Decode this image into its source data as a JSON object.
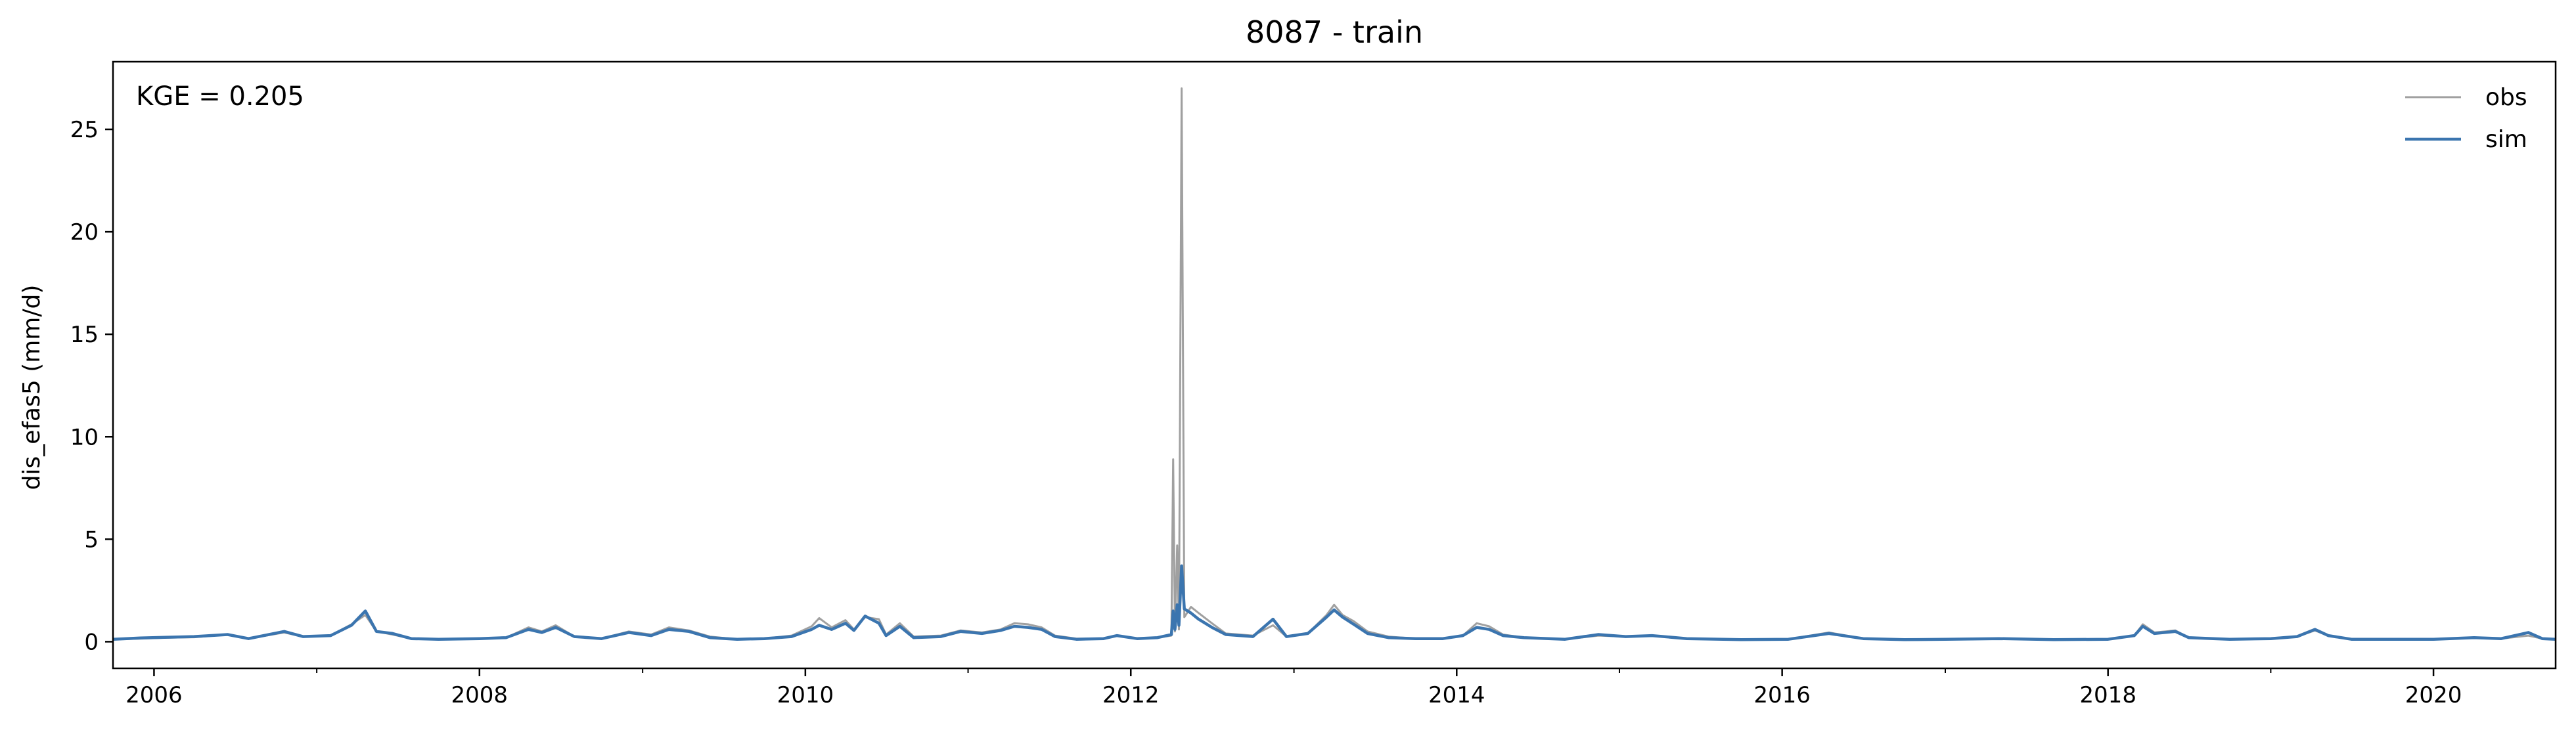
{
  "chart_data": {
    "type": "line",
    "title": "8087 - train",
    "xlabel": "",
    "ylabel": "dis_efas5 (mm/d)",
    "x_range": [
      "2005-10-01",
      "2020-10-01"
    ],
    "ylim": [
      -1.3,
      28.3
    ],
    "x_ticks": [
      "2006",
      "2008",
      "2010",
      "2012",
      "2014",
      "2016",
      "2018",
      "2020"
    ],
    "y_ticks": [
      0,
      5,
      10,
      15,
      20,
      25
    ],
    "grid": false,
    "legend": "top-right",
    "annotation": "KGE = 0.205",
    "series": [
      {
        "name": "obs",
        "color": "#a0a0a0",
        "points": [
          [
            "2005-10-01",
            0.12
          ],
          [
            "2005-12-01",
            0.15
          ],
          [
            "2006-02-01",
            0.2
          ],
          [
            "2006-04-01",
            0.22
          ],
          [
            "2006-06-15",
            0.35
          ],
          [
            "2006-08-01",
            0.15
          ],
          [
            "2006-10-20",
            0.45
          ],
          [
            "2006-12-01",
            0.25
          ],
          [
            "2007-02-01",
            0.3
          ],
          [
            "2007-03-20",
            0.85
          ],
          [
            "2007-04-20",
            1.3
          ],
          [
            "2007-05-15",
            0.5
          ],
          [
            "2007-06-20",
            0.35
          ],
          [
            "2007-08-01",
            0.15
          ],
          [
            "2007-10-01",
            0.12
          ],
          [
            "2008-01-01",
            0.15
          ],
          [
            "2008-03-01",
            0.2
          ],
          [
            "2008-04-20",
            0.7
          ],
          [
            "2008-05-20",
            0.5
          ],
          [
            "2008-06-20",
            0.8
          ],
          [
            "2008-08-01",
            0.25
          ],
          [
            "2008-10-01",
            0.15
          ],
          [
            "2008-12-01",
            0.5
          ],
          [
            "2009-01-20",
            0.35
          ],
          [
            "2009-03-01",
            0.7
          ],
          [
            "2009-04-15",
            0.55
          ],
          [
            "2009-06-01",
            0.25
          ],
          [
            "2009-08-01",
            0.12
          ],
          [
            "2009-10-01",
            0.15
          ],
          [
            "2009-12-01",
            0.3
          ],
          [
            "2010-01-15",
            0.75
          ],
          [
            "2010-02-01",
            1.15
          ],
          [
            "2010-03-01",
            0.7
          ],
          [
            "2010-04-01",
            1.05
          ],
          [
            "2010-04-20",
            0.6
          ],
          [
            "2010-05-15",
            1.2
          ],
          [
            "2010-06-15",
            1.1
          ],
          [
            "2010-07-01",
            0.35
          ],
          [
            "2010-08-01",
            0.9
          ],
          [
            "2010-09-01",
            0.25
          ],
          [
            "2010-11-01",
            0.3
          ],
          [
            "2010-12-15",
            0.55
          ],
          [
            "2011-02-01",
            0.45
          ],
          [
            "2011-03-15",
            0.6
          ],
          [
            "2011-04-15",
            0.9
          ],
          [
            "2011-05-15",
            0.85
          ],
          [
            "2011-06-15",
            0.7
          ],
          [
            "2011-07-15",
            0.3
          ],
          [
            "2011-09-01",
            0.15
          ],
          [
            "2011-11-01",
            0.15
          ],
          [
            "2011-12-01",
            0.3
          ],
          [
            "2012-01-15",
            0.15
          ],
          [
            "2012-03-01",
            0.2
          ],
          [
            "2012-04-01",
            0.3
          ],
          [
            "2012-04-05",
            8.9
          ],
          [
            "2012-04-09",
            0.5
          ],
          [
            "2012-04-14",
            4.7
          ],
          [
            "2012-04-18",
            0.6
          ],
          [
            "2012-04-24",
            27.0
          ],
          [
            "2012-04-30",
            1.2
          ],
          [
            "2012-05-15",
            1.7
          ],
          [
            "2012-06-01",
            1.4
          ],
          [
            "2012-07-01",
            0.9
          ],
          [
            "2012-08-01",
            0.4
          ],
          [
            "2012-10-01",
            0.3
          ],
          [
            "2012-11-15",
            0.8
          ],
          [
            "2012-12-15",
            0.25
          ],
          [
            "2013-02-01",
            0.4
          ],
          [
            "2013-03-15",
            1.3
          ],
          [
            "2013-04-01",
            1.8
          ],
          [
            "2013-04-20",
            1.3
          ],
          [
            "2013-05-15",
            1.0
          ],
          [
            "2013-06-15",
            0.5
          ],
          [
            "2013-08-01",
            0.25
          ],
          [
            "2013-10-01",
            0.15
          ],
          [
            "2013-12-01",
            0.15
          ],
          [
            "2014-01-15",
            0.3
          ],
          [
            "2014-02-15",
            0.9
          ],
          [
            "2014-03-15",
            0.75
          ],
          [
            "2014-04-15",
            0.35
          ],
          [
            "2014-06-01",
            0.2
          ],
          [
            "2014-09-01",
            0.12
          ],
          [
            "2014-11-15",
            0.3
          ],
          [
            "2015-01-15",
            0.25
          ],
          [
            "2015-03-15",
            0.3
          ],
          [
            "2015-06-01",
            0.15
          ],
          [
            "2015-10-01",
            0.1
          ],
          [
            "2016-01-15",
            0.12
          ],
          [
            "2016-04-15",
            0.45
          ],
          [
            "2016-07-01",
            0.15
          ],
          [
            "2016-10-01",
            0.1
          ],
          [
            "2017-01-01",
            0.12
          ],
          [
            "2017-05-01",
            0.15
          ],
          [
            "2017-09-01",
            0.1
          ],
          [
            "2018-01-01",
            0.12
          ],
          [
            "2018-03-01",
            0.3
          ],
          [
            "2018-03-20",
            0.85
          ],
          [
            "2018-04-15",
            0.45
          ],
          [
            "2018-06-01",
            0.55
          ],
          [
            "2018-07-01",
            0.2
          ],
          [
            "2018-10-01",
            0.12
          ],
          [
            "2019-01-01",
            0.15
          ],
          [
            "2019-03-01",
            0.25
          ],
          [
            "2019-04-10",
            0.55
          ],
          [
            "2019-05-10",
            0.3
          ],
          [
            "2019-07-01",
            0.12
          ],
          [
            "2019-10-01",
            0.12
          ],
          [
            "2020-01-01",
            0.12
          ],
          [
            "2020-04-01",
            0.2
          ],
          [
            "2020-06-01",
            0.15
          ],
          [
            "2020-08-01",
            0.3
          ],
          [
            "2020-09-01",
            0.15
          ],
          [
            "2020-10-01",
            0.12
          ]
        ]
      },
      {
        "name": "sim",
        "color": "#3b75af",
        "points": [
          [
            "2005-10-01",
            0.12
          ],
          [
            "2005-12-01",
            0.18
          ],
          [
            "2006-02-01",
            0.22
          ],
          [
            "2006-04-01",
            0.25
          ],
          [
            "2006-06-15",
            0.35
          ],
          [
            "2006-08-01",
            0.15
          ],
          [
            "2006-10-20",
            0.5
          ],
          [
            "2006-12-01",
            0.25
          ],
          [
            "2007-02-01",
            0.3
          ],
          [
            "2007-03-20",
            0.8
          ],
          [
            "2007-04-20",
            1.5
          ],
          [
            "2007-05-15",
            0.5
          ],
          [
            "2007-06-20",
            0.4
          ],
          [
            "2007-08-01",
            0.15
          ],
          [
            "2007-10-01",
            0.12
          ],
          [
            "2008-01-01",
            0.15
          ],
          [
            "2008-03-01",
            0.2
          ],
          [
            "2008-04-20",
            0.6
          ],
          [
            "2008-05-20",
            0.45
          ],
          [
            "2008-06-20",
            0.7
          ],
          [
            "2008-08-01",
            0.25
          ],
          [
            "2008-10-01",
            0.15
          ],
          [
            "2008-12-01",
            0.45
          ],
          [
            "2009-01-20",
            0.3
          ],
          [
            "2009-03-01",
            0.6
          ],
          [
            "2009-04-15",
            0.5
          ],
          [
            "2009-06-01",
            0.2
          ],
          [
            "2009-08-01",
            0.12
          ],
          [
            "2009-10-01",
            0.15
          ],
          [
            "2009-12-01",
            0.25
          ],
          [
            "2010-01-15",
            0.6
          ],
          [
            "2010-02-01",
            0.8
          ],
          [
            "2010-03-01",
            0.6
          ],
          [
            "2010-04-01",
            0.9
          ],
          [
            "2010-04-20",
            0.55
          ],
          [
            "2010-05-15",
            1.25
          ],
          [
            "2010-06-15",
            0.9
          ],
          [
            "2010-07-01",
            0.3
          ],
          [
            "2010-08-01",
            0.75
          ],
          [
            "2010-09-01",
            0.2
          ],
          [
            "2010-11-01",
            0.25
          ],
          [
            "2010-12-15",
            0.5
          ],
          [
            "2011-02-01",
            0.4
          ],
          [
            "2011-03-15",
            0.55
          ],
          [
            "2011-04-15",
            0.75
          ],
          [
            "2011-05-15",
            0.7
          ],
          [
            "2011-06-15",
            0.6
          ],
          [
            "2011-07-15",
            0.25
          ],
          [
            "2011-09-01",
            0.12
          ],
          [
            "2011-11-01",
            0.15
          ],
          [
            "2011-12-01",
            0.3
          ],
          [
            "2012-01-15",
            0.15
          ],
          [
            "2012-03-01",
            0.2
          ],
          [
            "2012-04-01",
            0.35
          ],
          [
            "2012-04-05",
            1.5
          ],
          [
            "2012-04-09",
            0.6
          ],
          [
            "2012-04-14",
            1.8
          ],
          [
            "2012-04-18",
            0.8
          ],
          [
            "2012-04-24",
            3.7
          ],
          [
            "2012-04-30",
            1.6
          ],
          [
            "2012-05-15",
            1.4
          ],
          [
            "2012-06-01",
            1.1
          ],
          [
            "2012-07-01",
            0.7
          ],
          [
            "2012-08-01",
            0.35
          ],
          [
            "2012-10-01",
            0.25
          ],
          [
            "2012-11-15",
            1.1
          ],
          [
            "2012-12-15",
            0.25
          ],
          [
            "2013-02-01",
            0.4
          ],
          [
            "2013-03-15",
            1.2
          ],
          [
            "2013-04-01",
            1.55
          ],
          [
            "2013-04-20",
            1.2
          ],
          [
            "2013-05-15",
            0.85
          ],
          [
            "2013-06-15",
            0.4
          ],
          [
            "2013-08-01",
            0.2
          ],
          [
            "2013-10-01",
            0.15
          ],
          [
            "2013-12-01",
            0.15
          ],
          [
            "2014-01-15",
            0.3
          ],
          [
            "2014-02-15",
            0.7
          ],
          [
            "2014-03-15",
            0.6
          ],
          [
            "2014-04-15",
            0.3
          ],
          [
            "2014-06-01",
            0.2
          ],
          [
            "2014-09-01",
            0.12
          ],
          [
            "2014-11-15",
            0.35
          ],
          [
            "2015-01-15",
            0.25
          ],
          [
            "2015-03-15",
            0.3
          ],
          [
            "2015-06-01",
            0.15
          ],
          [
            "2015-10-01",
            0.1
          ],
          [
            "2016-01-15",
            0.12
          ],
          [
            "2016-04-15",
            0.4
          ],
          [
            "2016-07-01",
            0.15
          ],
          [
            "2016-10-01",
            0.1
          ],
          [
            "2017-01-01",
            0.12
          ],
          [
            "2017-05-01",
            0.15
          ],
          [
            "2017-09-01",
            0.1
          ],
          [
            "2018-01-01",
            0.12
          ],
          [
            "2018-03-01",
            0.3
          ],
          [
            "2018-03-20",
            0.75
          ],
          [
            "2018-04-15",
            0.4
          ],
          [
            "2018-06-01",
            0.5
          ],
          [
            "2018-07-01",
            0.2
          ],
          [
            "2018-10-01",
            0.12
          ],
          [
            "2019-01-01",
            0.15
          ],
          [
            "2019-03-01",
            0.25
          ],
          [
            "2019-04-10",
            0.6
          ],
          [
            "2019-05-10",
            0.3
          ],
          [
            "2019-07-01",
            0.12
          ],
          [
            "2019-10-01",
            0.12
          ],
          [
            "2020-01-01",
            0.12
          ],
          [
            "2020-04-01",
            0.2
          ],
          [
            "2020-06-01",
            0.15
          ],
          [
            "2020-08-01",
            0.45
          ],
          [
            "2020-09-01",
            0.15
          ],
          [
            "2020-10-01",
            0.12
          ]
        ]
      }
    ]
  }
}
